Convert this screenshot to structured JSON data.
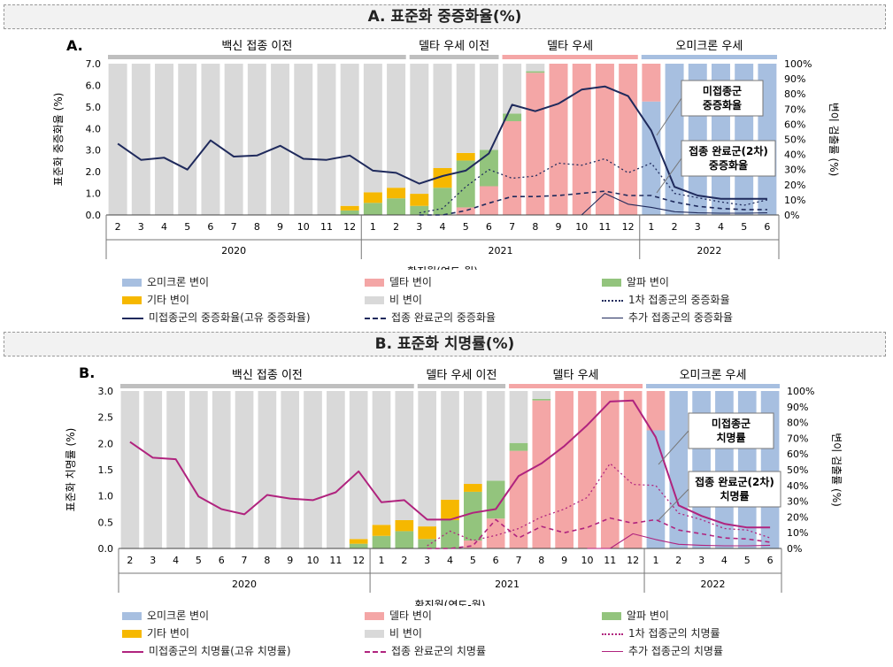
{
  "colors": {
    "omicron": "#a7bfe0",
    "delta": "#f4a6a6",
    "alpha": "#93c47d",
    "other": "#f6b800",
    "non": "#d9d9d9",
    "lineA": "#1f2a5c",
    "lineB": "#b0237e"
  },
  "months": [
    "2",
    "3",
    "4",
    "5",
    "6",
    "7",
    "8",
    "9",
    "10",
    "11",
    "12",
    "1",
    "2",
    "3",
    "4",
    "5",
    "6",
    "7",
    "8",
    "9",
    "10",
    "11",
    "12",
    "1",
    "2",
    "3",
    "4",
    "5",
    "6"
  ],
  "years": [
    {
      "label": "2020",
      "start": 0,
      "end": 10
    },
    {
      "label": "2021",
      "start": 11,
      "end": 22
    },
    {
      "label": "2022",
      "start": 23,
      "end": 28
    }
  ],
  "xlabel": "확진월(연도-월)",
  "ylabel_right": "변이 검출률 (%)",
  "pct_ticks": [
    "0%",
    "10%",
    "20%",
    "30%",
    "40%",
    "50%",
    "60%",
    "70%",
    "80%",
    "90%",
    "100%"
  ],
  "variant_shares": {
    "omicron": [
      0,
      0,
      0,
      0,
      0,
      0,
      0,
      0,
      0,
      0,
      0,
      0,
      0,
      0,
      0,
      0,
      0,
      0,
      0,
      0,
      0,
      0,
      0,
      75,
      100,
      100,
      100,
      100,
      100
    ],
    "delta": [
      0,
      0,
      0,
      0,
      0,
      0,
      0,
      0,
      0,
      0,
      0,
      0,
      0,
      0,
      0,
      5,
      19,
      62,
      94,
      100,
      100,
      100,
      100,
      25,
      0,
      0,
      0,
      0,
      0
    ],
    "alpha": [
      0,
      0,
      0,
      0,
      0,
      0,
      0,
      0,
      0,
      0,
      3,
      8,
      11,
      6,
      18,
      31,
      24,
      5,
      1,
      0,
      0,
      0,
      0,
      0,
      0,
      0,
      0,
      0,
      0
    ],
    "other": [
      0,
      0,
      0,
      0,
      0,
      0,
      0,
      0,
      0,
      0,
      3,
      7,
      7,
      8,
      13,
      5,
      0,
      0,
      0,
      0,
      0,
      0,
      0,
      0,
      0,
      0,
      0,
      0,
      0
    ]
  },
  "charts": [
    {
      "section_title": "A. 표준화 중증화율(%)",
      "panel_label": "A.",
      "ylabel": "표준화 중증화율 (%)",
      "ymax": 7.0,
      "yticks": [
        "0.0",
        "1.0",
        "2.0",
        "3.0",
        "4.0",
        "5.0",
        "6.0",
        "7.0"
      ],
      "periods": [
        {
          "label": "백신 접종 이전",
          "start": 0,
          "end": 12,
          "color": "#bfbfbf"
        },
        {
          "label": "델타 우세 이전",
          "start": 13,
          "end": 16,
          "color": "#bfbfbf"
        },
        {
          "label": "델타 우세",
          "start": 17,
          "end": 22,
          "color": "#f4a6a6"
        },
        {
          "label": "오미크론 우세",
          "start": 23,
          "end": 28,
          "color": "#a7bfe0"
        }
      ],
      "callouts": [
        {
          "lines": [
            "미접종군",
            "중증화율"
          ]
        },
        {
          "lines": [
            "접종 완료군(2차)",
            "중증화율"
          ]
        }
      ],
      "chart_data": {
        "type": "line",
        "x": [
          "2020-2",
          "2020-3",
          "2020-4",
          "2020-5",
          "2020-6",
          "2020-7",
          "2020-8",
          "2020-9",
          "2020-10",
          "2020-11",
          "2020-12",
          "2021-1",
          "2021-2",
          "2021-3",
          "2021-4",
          "2021-5",
          "2021-6",
          "2021-7",
          "2021-8",
          "2021-9",
          "2021-10",
          "2021-11",
          "2021-12",
          "2022-1",
          "2022-2",
          "2022-3",
          "2022-4",
          "2022-5",
          "2022-6"
        ],
        "series": [
          {
            "name": "미접종군의 중증화율(고유 중증화율)",
            "style": "solid",
            "values": [
              3.3,
              2.55,
              2.65,
              2.1,
              3.45,
              2.7,
              2.75,
              3.2,
              2.6,
              2.55,
              2.75,
              2.05,
              1.95,
              1.45,
              1.8,
              2.05,
              2.85,
              5.1,
              4.8,
              5.15,
              5.8,
              5.95,
              5.5,
              3.9,
              1.3,
              0.9,
              0.75,
              0.75,
              0.75
            ]
          },
          {
            "name": "접종 완료군의 중증화율",
            "style": "dash",
            "values": [
              null,
              null,
              null,
              null,
              null,
              null,
              null,
              null,
              null,
              null,
              null,
              null,
              null,
              0.0,
              0.0,
              0.2,
              0.55,
              0.85,
              0.85,
              0.9,
              1.0,
              1.1,
              0.9,
              0.9,
              0.6,
              0.4,
              0.3,
              0.25,
              0.25
            ]
          },
          {
            "name": "1차 접종군의 중증화율",
            "style": "dot",
            "values": [
              null,
              null,
              null,
              null,
              null,
              null,
              null,
              null,
              null,
              null,
              null,
              null,
              null,
              0.1,
              0.3,
              1.3,
              2.1,
              1.7,
              1.8,
              2.4,
              2.3,
              2.6,
              1.95,
              2.4,
              1.0,
              0.8,
              0.6,
              0.45,
              0.7
            ]
          },
          {
            "name": "추가 접종군의 중증화율",
            "style": "thin",
            "values": [
              null,
              null,
              null,
              null,
              null,
              null,
              null,
              null,
              null,
              null,
              null,
              null,
              null,
              null,
              null,
              null,
              null,
              null,
              null,
              null,
              0.0,
              1.0,
              0.5,
              0.35,
              0.15,
              0.1,
              0.08,
              0.08,
              0.1
            ]
          }
        ],
        "legend": [
          {
            "label": "오미크론 변이",
            "kind": "box",
            "color": "#a7bfe0"
          },
          {
            "label": "델타 변이",
            "kind": "box",
            "color": "#f4a6a6"
          },
          {
            "label": "알파 변이",
            "kind": "box",
            "color": "#93c47d"
          },
          {
            "label": "기타 변이",
            "kind": "box",
            "color": "#f6b800"
          },
          {
            "label": "비 변이",
            "kind": "box",
            "color": "#d9d9d9"
          },
          {
            "label": "1차 접종군의 중증화율",
            "kind": "dot",
            "color": "#1f2a5c"
          },
          {
            "label": "미접종군의 중증화율(고유 중증화율)",
            "kind": "line",
            "color": "#1f2a5c"
          },
          {
            "label": "접종 완료군의 중증화율",
            "kind": "dash",
            "color": "#1f2a5c"
          },
          {
            "label": "추가 접종군의 중증화율",
            "kind": "thin",
            "color": "#1f2a5c"
          }
        ]
      }
    },
    {
      "section_title": "B. 표준화 치명률(%)",
      "panel_label": "B.",
      "ylabel": "표준화 치명률 (%)",
      "ymax": 3.0,
      "yticks": [
        "0.0",
        "0.5",
        "1.0",
        "1.5",
        "2.0",
        "2.5",
        "3.0"
      ],
      "periods": [
        {
          "label": "백신 접종 이전",
          "start": 0,
          "end": 12,
          "color": "#bfbfbf"
        },
        {
          "label": "델타 우세 이전",
          "start": 13,
          "end": 16,
          "color": "#bfbfbf"
        },
        {
          "label": "델타 우세",
          "start": 17,
          "end": 22,
          "color": "#f4a6a6"
        },
        {
          "label": "오미크론 우세",
          "start": 23,
          "end": 28,
          "color": "#a7bfe0"
        }
      ],
      "callouts": [
        {
          "lines": [
            "미접종군",
            "치명률"
          ]
        },
        {
          "lines": [
            "접종 완료군(2차)",
            "치명률"
          ]
        }
      ],
      "chart_data": {
        "type": "line",
        "x": [
          "2020-2",
          "2020-3",
          "2020-4",
          "2020-5",
          "2020-6",
          "2020-7",
          "2020-8",
          "2020-9",
          "2020-10",
          "2020-11",
          "2020-12",
          "2021-1",
          "2021-2",
          "2021-3",
          "2021-4",
          "2021-5",
          "2021-6",
          "2021-7",
          "2021-8",
          "2021-9",
          "2021-10",
          "2021-11",
          "2021-12",
          "2022-1",
          "2022-2",
          "2022-3",
          "2022-4",
          "2022-5",
          "2022-6"
        ],
        "series": [
          {
            "name": "미접종군의 치명률(고유 치명률)",
            "style": "solid",
            "values": [
              2.03,
              1.73,
              1.7,
              0.99,
              0.75,
              0.65,
              1.02,
              0.95,
              0.92,
              1.07,
              1.47,
              0.88,
              0.92,
              0.55,
              0.55,
              0.68,
              0.75,
              1.38,
              1.62,
              1.95,
              2.35,
              2.8,
              2.82,
              2.12,
              0.82,
              0.62,
              0.47,
              0.4,
              0.4
            ]
          },
          {
            "name": "접종 완료군의 치명률",
            "style": "dash",
            "values": [
              null,
              null,
              null,
              null,
              null,
              null,
              null,
              null,
              null,
              null,
              null,
              null,
              null,
              0.0,
              0.0,
              0.05,
              0.55,
              0.2,
              0.42,
              0.3,
              0.4,
              0.58,
              0.48,
              0.55,
              0.35,
              0.28,
              0.2,
              0.18,
              0.12
            ]
          },
          {
            "name": "1차 접종군의 치명률",
            "style": "dot",
            "values": [
              null,
              null,
              null,
              null,
              null,
              null,
              null,
              null,
              null,
              null,
              null,
              null,
              null,
              0.05,
              0.33,
              0.15,
              0.25,
              0.38,
              0.6,
              0.75,
              0.97,
              1.62,
              1.22,
              1.2,
              0.67,
              0.55,
              0.38,
              0.35,
              0.2
            ]
          },
          {
            "name": "추가 접종군의 치명률",
            "style": "thin",
            "values": [
              null,
              null,
              null,
              null,
              null,
              null,
              null,
              null,
              null,
              null,
              null,
              null,
              null,
              null,
              null,
              null,
              null,
              null,
              null,
              null,
              0.0,
              0.0,
              0.28,
              0.17,
              0.08,
              0.06,
              0.05,
              0.05,
              0.06
            ]
          }
        ],
        "legend": [
          {
            "label": "오미크론 변이",
            "kind": "box",
            "color": "#a7bfe0"
          },
          {
            "label": "델타 변이",
            "kind": "box",
            "color": "#f4a6a6"
          },
          {
            "label": "알파 변이",
            "kind": "box",
            "color": "#93c47d"
          },
          {
            "label": "기타 변이",
            "kind": "box",
            "color": "#f6b800"
          },
          {
            "label": "비 변이",
            "kind": "box",
            "color": "#d9d9d9"
          },
          {
            "label": "1차 접종군의 치명률",
            "kind": "dot",
            "color": "#b0237e"
          },
          {
            "label": "미접종군의 치명률(고유 치명률)",
            "kind": "line",
            "color": "#b0237e"
          },
          {
            "label": "접종 완료군의 치명률",
            "kind": "dash",
            "color": "#b0237e"
          },
          {
            "label": "추가 접종군의 치명률",
            "kind": "thin",
            "color": "#b0237e"
          }
        ]
      }
    }
  ]
}
